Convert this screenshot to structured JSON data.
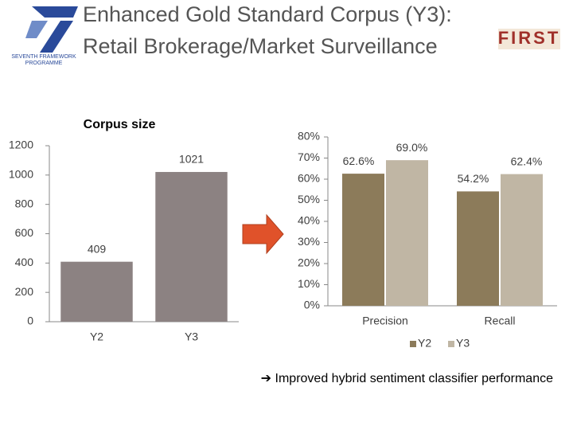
{
  "header": {
    "title_lines": [
      "Enhanced Gold Standard Corpus (Y3):",
      "Retail Brokerage/Market Surveillance"
    ],
    "logo_left": [
      "SEVENTH FRAMEWORK",
      "PROGRAMME"
    ],
    "logo_right": "FIRST"
  },
  "chart_data": [
    {
      "type": "bar",
      "title": "Corpus size",
      "categories": [
        "Y2",
        "Y3"
      ],
      "values": [
        409,
        1021
      ],
      "color": "#8c8282",
      "ylim": [
        0,
        1200
      ],
      "yticks": [
        0,
        200,
        400,
        600,
        800,
        1000,
        1200
      ]
    },
    {
      "type": "grouped_bar",
      "categories": [
        "Precision",
        "Recall"
      ],
      "series": [
        {
          "name": "Y2",
          "color": "#8c7b5a",
          "values": [
            62.6,
            54.2
          ],
          "value_labels": [
            "62.6%",
            "54.2%"
          ]
        },
        {
          "name": "Y3",
          "color": "#c0b6a4",
          "values": [
            69,
            62.4
          ],
          "value_labels": [
            "69.0%",
            "62.4%"
          ]
        }
      ],
      "ylim": [
        0,
        80
      ],
      "yticks": [
        {
          "value": 0,
          "label": "0%"
        },
        {
          "value": 10,
          "label": "10%"
        },
        {
          "value": 20,
          "label": "20%"
        },
        {
          "value": 30,
          "label": "30%"
        },
        {
          "value": 40,
          "label": "40%"
        },
        {
          "value": 50,
          "label": "50%"
        },
        {
          "value": 60,
          "label": "60%"
        },
        {
          "value": 70,
          "label": "70%"
        },
        {
          "value": 80,
          "label": "80%"
        }
      ],
      "legend": "bottom"
    }
  ],
  "footnote": "➔ Improved hybrid sentiment classifier performance"
}
